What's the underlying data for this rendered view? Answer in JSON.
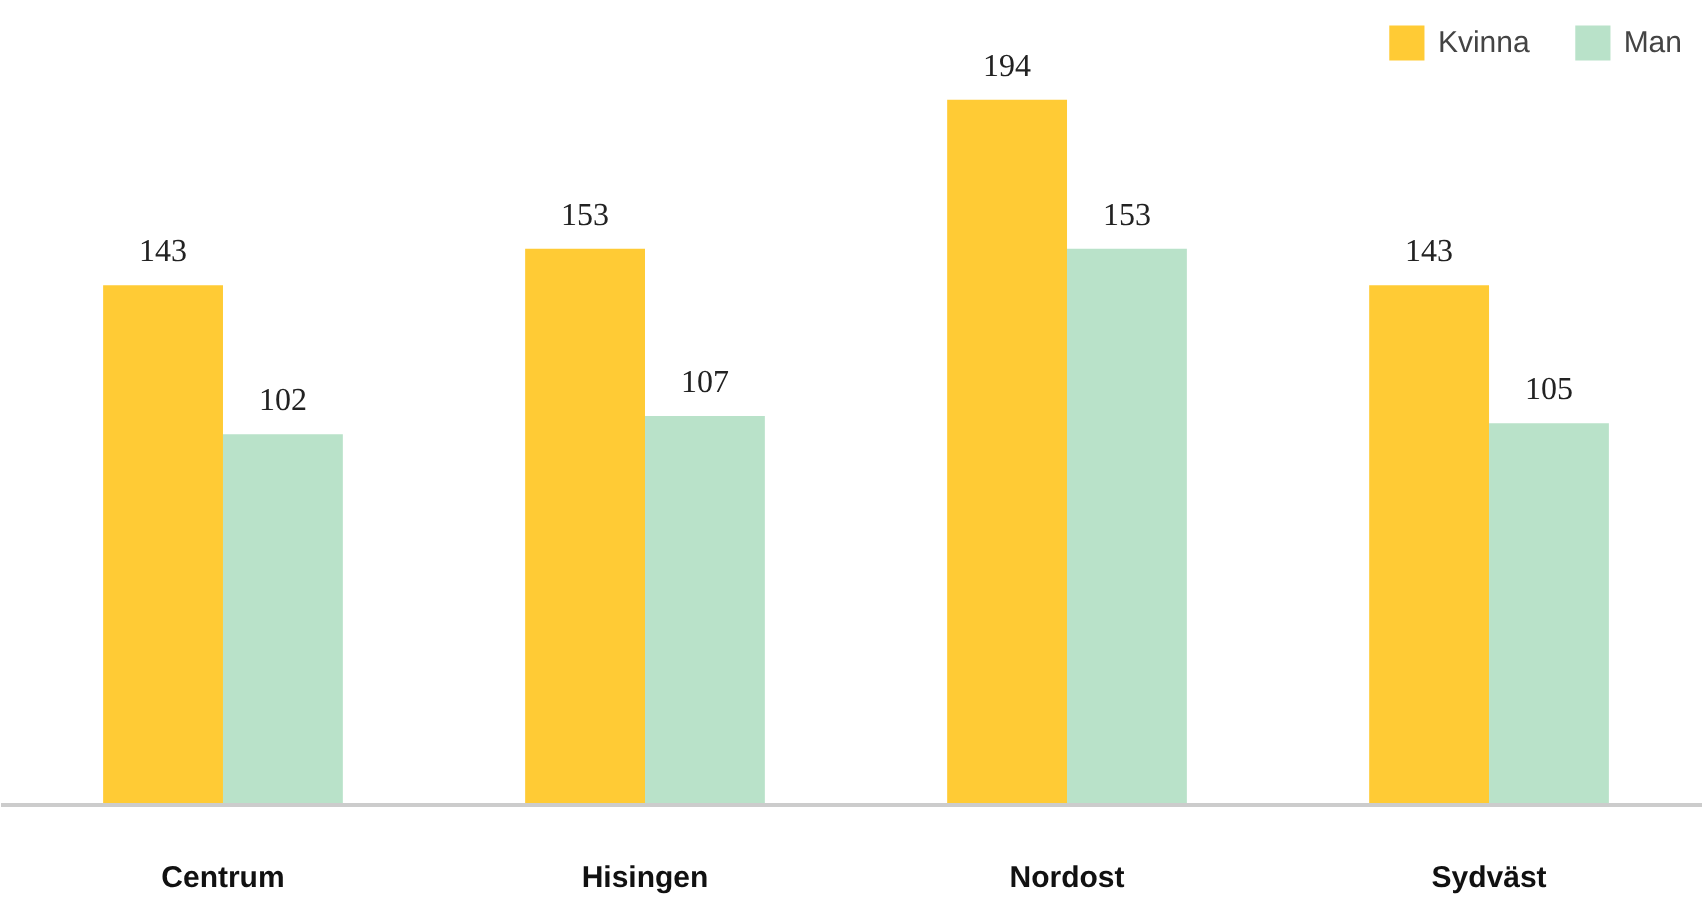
{
  "chart_data": {
    "type": "bar",
    "categories": [
      "Centrum",
      "Hisingen",
      "Nordost",
      "Sydväst"
    ],
    "series": [
      {
        "name": "Kvinna",
        "color": "#ffcb35",
        "values": [
          143,
          153,
          194,
          143
        ]
      },
      {
        "name": "Man",
        "color": "#b9e2c9",
        "values": [
          102,
          107,
          153,
          105
        ]
      }
    ],
    "data_labels": true,
    "legend": "top right",
    "grid": false
  }
}
